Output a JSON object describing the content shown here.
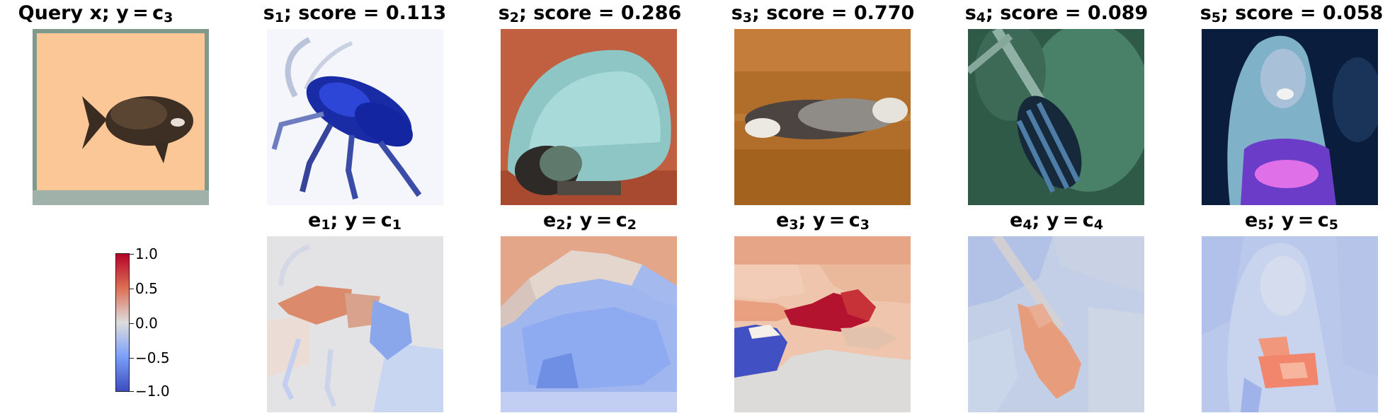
{
  "figure": {
    "top_row": [
      {
        "prefix": "Query x; y = c",
        "sub": "3",
        "suffix": ""
      },
      {
        "prefix": "s",
        "sub": "1",
        "suffix": "; score = 0.113"
      },
      {
        "prefix": "s",
        "sub": "2",
        "suffix": "; score = 0.286"
      },
      {
        "prefix": "s",
        "sub": "3",
        "suffix": "; score = 0.770"
      },
      {
        "prefix": "s",
        "sub": "4",
        "suffix": "; score = 0.089"
      },
      {
        "prefix": "s",
        "sub": "5",
        "suffix": "; score = 0.058"
      }
    ],
    "bottom_row": [
      {
        "prefix": "e",
        "sub": "1",
        "mid": "; y = c",
        "sub2": "1"
      },
      {
        "prefix": "e",
        "sub": "2",
        "mid": "; y = c",
        "sub2": "2"
      },
      {
        "prefix": "e",
        "sub": "3",
        "mid": "; y = c",
        "sub2": "3"
      },
      {
        "prefix": "e",
        "sub": "4",
        "mid": "; y = c",
        "sub2": "4"
      },
      {
        "prefix": "e",
        "sub": "5",
        "mid": "; y = c",
        "sub2": "5"
      }
    ],
    "colorbar": {
      "ticks": [
        "1.0",
        "0.5",
        "0.0",
        "−0.5",
        "−1.0"
      ],
      "colormap": "coolwarm",
      "range": [
        -1.0,
        1.0
      ]
    },
    "images": [
      "orange-square-with-brown-fish",
      "blue-beetle-on-white",
      "light-blue-hedgehog-on-red",
      "grey-animal-on-brown-wood",
      "green-background-with-striped-object",
      "person-with-long-hair-purple-light"
    ]
  }
}
